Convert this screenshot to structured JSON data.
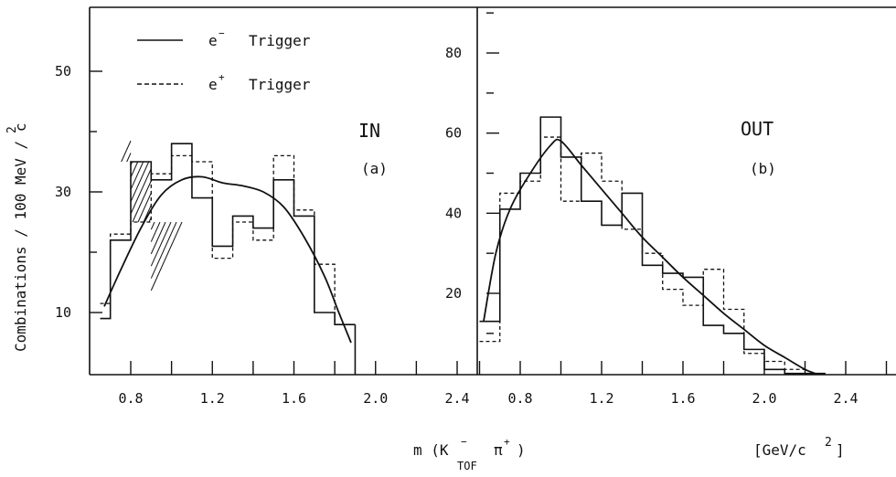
{
  "ylabel": "Combinations / 100  MeV / c",
  "ylabel_sup": "2",
  "xlabel_main": "m (K",
  "xlabel_sup": "−",
  "xlabel_sub": "TOF",
  "xlabel_pi": "π",
  "xlabel_pi_sup": "+",
  "xlabel_close": ")",
  "xunit": "[GeV/c",
  "xunit_sup": "2",
  "xunit_close": "]",
  "legend": {
    "solid_label": "Trigger",
    "solid_particle": "e",
    "solid_charge": "−",
    "dashed_label": "Trigger",
    "dashed_particle": "e",
    "dashed_charge": "+"
  },
  "chart_data": [
    {
      "type": "histogram",
      "panel_title": "IN",
      "panel_tag": "(a)",
      "xlim": [
        0.6,
        2.5
      ],
      "ylim": [
        0,
        58
      ],
      "xticks": [
        "0.8",
        "1.2",
        "1.6",
        "2.0",
        "2.4"
      ],
      "yticks": [
        "10",
        "30",
        "50"
      ],
      "bin_edges": [
        0.7,
        0.8,
        0.9,
        1.0,
        1.1,
        1.2,
        1.3,
        1.4,
        1.5,
        1.6,
        1.7,
        1.8,
        1.9
      ],
      "series": [
        {
          "name": "e⁻ Trigger",
          "style": "solid",
          "values": [
            22,
            35,
            32,
            38,
            29,
            21,
            26,
            24,
            32,
            26,
            10,
            8
          ]
        },
        {
          "name": "e⁺ Trigger",
          "style": "dashed",
          "values": [
            23,
            25,
            33,
            36,
            35,
            19,
            25,
            22,
            36,
            27,
            18,
            8
          ]
        }
      ],
      "edge_values": {
        "solid_before": 9,
        "dashed_before": 11.5
      },
      "hatched_bin": [
        0.8,
        0.9
      ],
      "fit_curve": [
        [
          0.67,
          11
        ],
        [
          0.75,
          17
        ],
        [
          0.85,
          24
        ],
        [
          0.95,
          29.5
        ],
        [
          1.05,
          32
        ],
        [
          1.15,
          32.5
        ],
        [
          1.25,
          31.5
        ],
        [
          1.35,
          31
        ],
        [
          1.45,
          30
        ],
        [
          1.55,
          27.5
        ],
        [
          1.65,
          22.5
        ],
        [
          1.75,
          16
        ],
        [
          1.82,
          10
        ],
        [
          1.88,
          5
        ]
      ]
    },
    {
      "type": "histogram",
      "panel_title": "OUT",
      "panel_tag": "(b)",
      "xlim": [
        0.6,
        2.8
      ],
      "ylim": [
        0,
        98
      ],
      "xticks": [
        "0.8",
        "1.2",
        "1.6",
        "2.0",
        "2.4"
      ],
      "yticks": [
        "20",
        "40",
        "60",
        "80"
      ],
      "bin_edges": [
        0.6,
        0.7,
        0.8,
        0.9,
        1.0,
        1.1,
        1.2,
        1.3,
        1.4,
        1.5,
        1.6,
        1.7,
        1.8,
        1.9,
        2.0,
        2.1,
        2.2,
        2.3
      ],
      "series": [
        {
          "name": "e⁻ Trigger",
          "style": "solid",
          "values": [
            13,
            41,
            50,
            64,
            54,
            43,
            37,
            45,
            27,
            25,
            24,
            12,
            10,
            6,
            1,
            0,
            0
          ]
        },
        {
          "name": "e⁺ Trigger",
          "style": "dashed",
          "values": [
            8,
            45,
            48,
            59,
            43,
            55,
            48,
            36,
            30,
            21,
            17,
            26,
            16,
            5,
            3,
            1,
            0
          ]
        }
      ],
      "fit_curve": [
        [
          0.62,
          13
        ],
        [
          0.68,
          30
        ],
        [
          0.75,
          41
        ],
        [
          0.85,
          50
        ],
        [
          0.95,
          57
        ],
        [
          1.0,
          58
        ],
        [
          1.1,
          52
        ],
        [
          1.2,
          46
        ],
        [
          1.3,
          40
        ],
        [
          1.4,
          34
        ],
        [
          1.5,
          29
        ],
        [
          1.6,
          24
        ],
        [
          1.7,
          19.5
        ],
        [
          1.8,
          15
        ],
        [
          1.9,
          11
        ],
        [
          2.0,
          7
        ],
        [
          2.1,
          4
        ],
        [
          2.2,
          1
        ],
        [
          2.25,
          0
        ]
      ]
    }
  ]
}
